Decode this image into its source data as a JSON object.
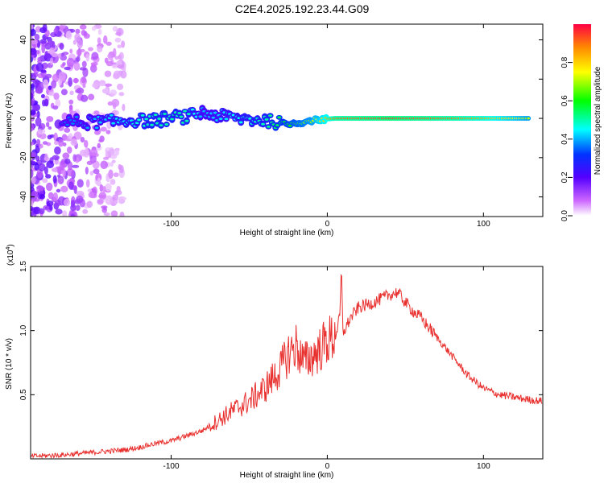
{
  "title": "C2E4.2025.192.23.44.G09",
  "colors": {
    "snr_line": "#e8302e",
    "axis": "#000000"
  },
  "chart_data": [
    {
      "type": "heatmap",
      "xlabel": "Height of straight line (km)",
      "ylabel": "Frequency (Hz)",
      "xlim": [
        -190,
        138
      ],
      "ylim": [
        -50,
        48
      ],
      "x_ticks": [
        -100,
        0,
        100
      ],
      "x_tick_labels": [
        "-100",
        "0",
        "100"
      ],
      "y_ticks": [
        -40,
        -20,
        0,
        20,
        40
      ],
      "y_tick_labels": [
        "-40",
        "-20",
        "0",
        "20",
        "40"
      ],
      "grid": false,
      "colorbar": {
        "label": "Normalized spectral amplitude",
        "range": [
          0,
          1
        ],
        "ticks": [
          0.0,
          0.2,
          0.4,
          0.6,
          0.8
        ],
        "tick_labels": [
          "0.0",
          "0.2",
          "0.4",
          "0.6",
          "0.8"
        ],
        "colormap": "rainbow (white-violet-blue-cyan-green-yellow-red)"
      },
      "ridge": {
        "description": "Spectral energy concentrated near 0 Hz across heights",
        "points": [
          {
            "x": -170,
            "y": -2,
            "amp": 0.35
          },
          {
            "x": -150,
            "y": -2,
            "amp": 0.4
          },
          {
            "x": -130,
            "y": -1,
            "amp": 0.45
          },
          {
            "x": -110,
            "y": -1,
            "amp": 0.5
          },
          {
            "x": -90,
            "y": 1,
            "amp": 0.5
          },
          {
            "x": -80,
            "y": 3,
            "amp": 0.4
          },
          {
            "x": -60,
            "y": 0,
            "amp": 0.45
          },
          {
            "x": -40,
            "y": -1,
            "amp": 0.5
          },
          {
            "x": -25,
            "y": -3,
            "amp": 0.6
          },
          {
            "x": -10,
            "y": -1,
            "amp": 0.7
          },
          {
            "x": 5,
            "y": 0,
            "amp": 0.9
          },
          {
            "x": 40,
            "y": 0,
            "amp": 0.95
          },
          {
            "x": 80,
            "y": 0,
            "amp": 0.9
          },
          {
            "x": 100,
            "y": 0,
            "amp": 0.85
          },
          {
            "x": 130,
            "y": 0,
            "amp": 0.7
          }
        ]
      }
    },
    {
      "type": "line",
      "xlabel": "Height of straight line (km)",
      "ylabel": "SNR (10 * v/v)",
      "y_multiplier_label": "(x10",
      "y_multiplier_exponent": "4",
      "y_multiplier_close": ")",
      "xlim": [
        -190,
        138
      ],
      "ylim": [
        0,
        1.5
      ],
      "x_ticks": [
        -100,
        0,
        100
      ],
      "x_tick_labels": [
        "-100",
        "0",
        "100"
      ],
      "y_ticks": [
        0.5,
        1.0,
        1.5
      ],
      "y_tick_labels": [
        "0.5",
        "1.0",
        "1.5"
      ],
      "grid": false,
      "series": [
        {
          "color": "#e8302e",
          "x": [
            -190,
            -170,
            -150,
            -140,
            -130,
            -120,
            -110,
            -100,
            -90,
            -80,
            -70,
            -60,
            -50,
            -40,
            -30,
            -25,
            -20,
            -15,
            -10,
            -5,
            0,
            5,
            8,
            9,
            10,
            15,
            20,
            30,
            40,
            45,
            50,
            55,
            60,
            70,
            80,
            90,
            100,
            110,
            120,
            130,
            138
          ],
          "y": [
            0.02,
            0.03,
            0.05,
            0.06,
            0.07,
            0.09,
            0.12,
            0.14,
            0.18,
            0.22,
            0.3,
            0.38,
            0.45,
            0.55,
            0.7,
            0.82,
            0.88,
            0.75,
            0.8,
            0.85,
            0.92,
            0.95,
            1.1,
            1.5,
            0.98,
            1.1,
            1.18,
            1.22,
            1.28,
            1.3,
            1.22,
            1.15,
            1.1,
            0.95,
            0.8,
            0.65,
            0.55,
            0.5,
            0.48,
            0.46,
            0.45
          ]
        }
      ]
    }
  ]
}
